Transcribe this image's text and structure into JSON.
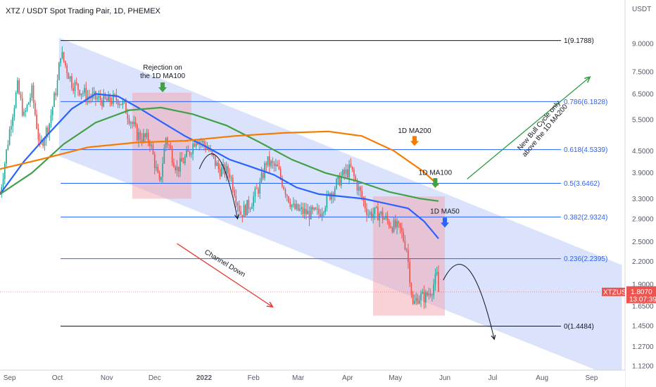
{
  "chart_data": {
    "type": "candlestick",
    "title": "XTZ / USDT Spot Trading Pair, 1D, PHEMEX",
    "currency_label": "USDT",
    "y_scale": "log",
    "ylim": [
      1.12,
      10.5
    ],
    "x_range": [
      "2021-08-26",
      "2022-09-22"
    ],
    "y_ticks": [
      {
        "value": 9.0,
        "label": "9.0000"
      },
      {
        "value": 7.5,
        "label": "7.5000"
      },
      {
        "value": 6.5,
        "label": "6.5000"
      },
      {
        "value": 5.5,
        "label": "5.5000"
      },
      {
        "value": 4.5,
        "label": "4.5000"
      },
      {
        "value": 3.9,
        "label": "3.9000"
      },
      {
        "value": 3.3,
        "label": "3.3000"
      },
      {
        "value": 2.9,
        "label": "2.9000"
      },
      {
        "value": 2.5,
        "label": "2.5000"
      },
      {
        "value": 2.2,
        "label": "2.2000"
      },
      {
        "value": 1.9,
        "label": "1.9000"
      },
      {
        "value": 1.65,
        "label": "1.6500"
      },
      {
        "value": 1.45,
        "label": "1.4500"
      },
      {
        "value": 1.27,
        "label": "1.2700"
      },
      {
        "value": 1.12,
        "label": "1.1200"
      }
    ],
    "x_ticks": [
      {
        "date": "2021-09-01",
        "label": "Sep"
      },
      {
        "date": "2021-10-01",
        "label": "Oct"
      },
      {
        "date": "2021-11-01",
        "label": "Nov"
      },
      {
        "date": "2021-12-01",
        "label": "Dec"
      },
      {
        "date": "2022-01-01",
        "label": "2022"
      },
      {
        "date": "2022-02-01",
        "label": "Feb"
      },
      {
        "date": "2022-03-01",
        "label": "Mar"
      },
      {
        "date": "2022-04-01",
        "label": "Apr"
      },
      {
        "date": "2022-05-01",
        "label": "May"
      },
      {
        "date": "2022-06-01",
        "label": "Jun"
      },
      {
        "date": "2022-07-01",
        "label": "Jul"
      },
      {
        "date": "2022-08-01",
        "label": "Aug"
      },
      {
        "date": "2022-09-01",
        "label": "Sep"
      }
    ],
    "price_path": [
      [
        "2021-08-26",
        3.4
      ],
      [
        "2021-09-02",
        5.5
      ],
      [
        "2021-09-06",
        6.8
      ],
      [
        "2021-09-10",
        5.6
      ],
      [
        "2021-09-15",
        6.6
      ],
      [
        "2021-09-20",
        4.6
      ],
      [
        "2021-09-26",
        5.4
      ],
      [
        "2021-10-01",
        7.0
      ],
      [
        "2021-10-03",
        8.5
      ],
      [
        "2021-10-10",
        7.0
      ],
      [
        "2021-10-20",
        6.4
      ],
      [
        "2021-11-01",
        6.2
      ],
      [
        "2021-11-08",
        6.3
      ],
      [
        "2021-11-12",
        6.0
      ],
      [
        "2021-11-20",
        5.0
      ],
      [
        "2021-11-28",
        4.8
      ],
      [
        "2021-12-04",
        3.6
      ],
      [
        "2021-12-08",
        4.9
      ],
      [
        "2021-12-15",
        4.0
      ],
      [
        "2021-12-22",
        4.4
      ],
      [
        "2021-12-27",
        4.9
      ],
      [
        "2022-01-03",
        4.6
      ],
      [
        "2022-01-10",
        4.0
      ],
      [
        "2022-01-17",
        3.9
      ],
      [
        "2022-01-24",
        3.0
      ],
      [
        "2022-01-30",
        3.2
      ],
      [
        "2022-02-05",
        3.6
      ],
      [
        "2022-02-09",
        4.2
      ],
      [
        "2022-02-16",
        4.0
      ],
      [
        "2022-02-22",
        3.4
      ],
      [
        "2022-02-26",
        3.1
      ],
      [
        "2022-03-07",
        3.0
      ],
      [
        "2022-03-14",
        3.0
      ],
      [
        "2022-03-21",
        3.4
      ],
      [
        "2022-03-28",
        3.8
      ],
      [
        "2022-04-03",
        4.0
      ],
      [
        "2022-04-08",
        3.5
      ],
      [
        "2022-04-14",
        3.0
      ],
      [
        "2022-04-21",
        3.0
      ],
      [
        "2022-04-28",
        2.8
      ],
      [
        "2022-05-04",
        2.7
      ],
      [
        "2022-05-08",
        2.4
      ],
      [
        "2022-05-10",
        2.0
      ],
      [
        "2022-05-12",
        1.65
      ],
      [
        "2022-05-15",
        1.75
      ],
      [
        "2022-05-20",
        1.75
      ],
      [
        "2022-05-24",
        1.85
      ],
      [
        "2022-05-27",
        2.0
      ],
      [
        "2022-05-28",
        1.807
      ]
    ],
    "series": [
      {
        "name": "1D MA50",
        "color": "#2962ff",
        "points": [
          [
            "2021-08-26",
            3.4
          ],
          [
            "2021-09-10",
            4.2
          ],
          [
            "2021-09-25",
            5.0
          ],
          [
            "2021-10-10",
            5.9
          ],
          [
            "2021-10-25",
            6.5
          ],
          [
            "2021-11-08",
            6.4
          ],
          [
            "2021-11-22",
            5.9
          ],
          [
            "2021-12-06",
            5.4
          ],
          [
            "2021-12-20",
            4.95
          ],
          [
            "2022-01-03",
            4.6
          ],
          [
            "2022-01-17",
            4.25
          ],
          [
            "2022-01-31",
            4.05
          ],
          [
            "2022-02-14",
            3.85
          ],
          [
            "2022-02-28",
            3.55
          ],
          [
            "2022-03-14",
            3.4
          ],
          [
            "2022-03-28",
            3.35
          ],
          [
            "2022-04-11",
            3.3
          ],
          [
            "2022-04-25",
            3.2
          ],
          [
            "2022-05-09",
            3.1
          ],
          [
            "2022-05-19",
            2.85
          ],
          [
            "2022-05-28",
            2.55
          ]
        ]
      },
      {
        "name": "1D MA100",
        "color": "#43a047",
        "points": [
          [
            "2021-08-26",
            3.4
          ],
          [
            "2021-09-15",
            3.9
          ],
          [
            "2021-10-05",
            4.7
          ],
          [
            "2021-10-25",
            5.4
          ],
          [
            "2021-11-15",
            5.85
          ],
          [
            "2021-12-05",
            5.95
          ],
          [
            "2021-12-25",
            5.7
          ],
          [
            "2022-01-15",
            5.3
          ],
          [
            "2022-02-05",
            4.75
          ],
          [
            "2022-02-25",
            4.25
          ],
          [
            "2022-03-18",
            3.9
          ],
          [
            "2022-04-07",
            3.7
          ],
          [
            "2022-04-27",
            3.45
          ],
          [
            "2022-05-17",
            3.3
          ],
          [
            "2022-05-28",
            3.25
          ]
        ]
      },
      {
        "name": "1D MA200",
        "color": "#f57c00",
        "points": [
          [
            "2021-08-26",
            4.0
          ],
          [
            "2021-09-20",
            4.25
          ],
          [
            "2021-10-20",
            4.6
          ],
          [
            "2021-11-20",
            4.75
          ],
          [
            "2021-12-20",
            4.8
          ],
          [
            "2022-01-20",
            4.95
          ],
          [
            "2022-02-20",
            5.05
          ],
          [
            "2022-03-20",
            5.1
          ],
          [
            "2022-04-10",
            4.95
          ],
          [
            "2022-04-30",
            4.5
          ],
          [
            "2022-05-18",
            3.95
          ],
          [
            "2022-05-28",
            3.6
          ]
        ]
      }
    ],
    "fib_levels": [
      {
        "value": 9.1788,
        "label": "1(9.1788)",
        "color": "#131722"
      },
      {
        "value": 6.1828,
        "label": "0.786(6.1828)",
        "color": "#2962ff"
      },
      {
        "value": 4.5339,
        "label": "0.618(4.5339)",
        "color": "#2962ff"
      },
      {
        "value": 3.6462,
        "label": "0.5(3.6462)",
        "color": "#2962ff"
      },
      {
        "value": 2.9324,
        "label": "0.382(2.9324)",
        "color": "#2962ff"
      },
      {
        "value": 2.2395,
        "label": "0.236(2.2395)",
        "color": "#2962ff"
      },
      {
        "value": 1.4484,
        "label": "0(1.4484)",
        "color": "#131722"
      }
    ],
    "current_price": {
      "value": 1.807,
      "symbol": "XTZUSDT",
      "price_label": "1.8070",
      "countdown": "13:07:39"
    },
    "annotations": [
      {
        "lines": [
          "Rejection on",
          "the 1D MA100"
        ]
      },
      {
        "lines": [
          "1D MA200"
        ]
      },
      {
        "lines": [
          "1D MA100"
        ]
      },
      {
        "lines": [
          "1D MA50"
        ]
      },
      {
        "lines": [
          "Channel Down"
        ]
      },
      {
        "lines": [
          "New Bull Cycle only",
          "above the 1D MA200"
        ]
      }
    ]
  }
}
